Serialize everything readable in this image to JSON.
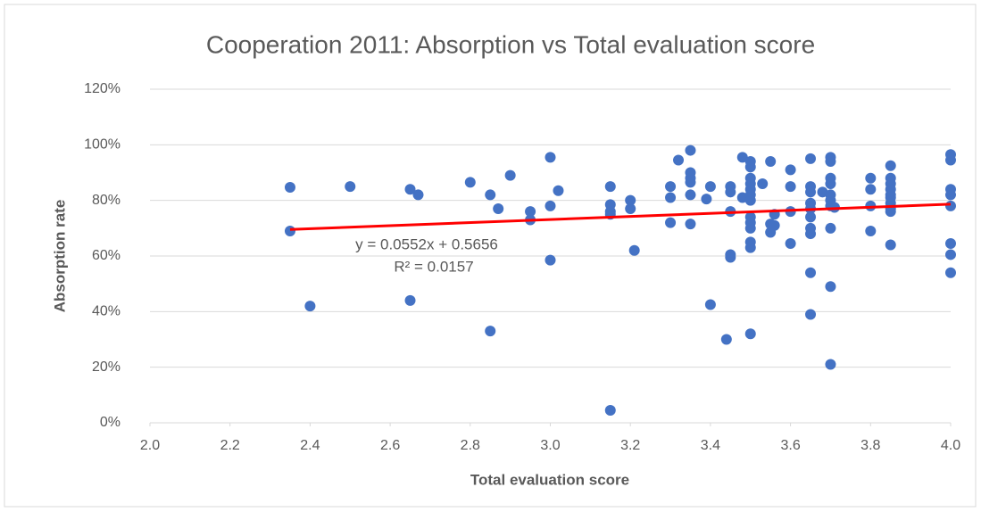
{
  "chart_data": {
    "type": "scatter",
    "title": "Cooperation 2011: Absorption vs Total evaluation score",
    "x_label": "Total evaluation score",
    "y_label": "Absorption rate",
    "color": "#4472c4",
    "grid": true,
    "xlim": [
      2.0,
      4.0
    ],
    "ylim": [
      0,
      1.2
    ],
    "xticks": [
      {
        "value": 2.0,
        "label": "2.0"
      },
      {
        "value": 2.2,
        "label": "2.2"
      },
      {
        "value": 2.4,
        "label": "2.4"
      },
      {
        "value": 2.6,
        "label": "2.6"
      },
      {
        "value": 2.8,
        "label": "2.8"
      },
      {
        "value": 3.0,
        "label": "3.0"
      },
      {
        "value": 3.2,
        "label": "3.2"
      },
      {
        "value": 3.4,
        "label": "3.4"
      },
      {
        "value": 3.6,
        "label": "3.6"
      },
      {
        "value": 3.8,
        "label": "3.8"
      },
      {
        "value": 4.0,
        "label": "4.0"
      }
    ],
    "yticks": [
      {
        "value": 0,
        "label": "0%"
      },
      {
        "value": 0.2,
        "label": "20%"
      },
      {
        "value": 0.4,
        "label": "40%"
      },
      {
        "value": 0.6,
        "label": "60%"
      },
      {
        "value": 0.8,
        "label": "80%"
      },
      {
        "value": 1.0,
        "label": "100%"
      },
      {
        "value": 1.2,
        "label": "120%"
      }
    ],
    "x": [
      2.35,
      2.35,
      2.4,
      2.5,
      2.65,
      2.67,
      2.65,
      2.8,
      2.85,
      2.87,
      2.85,
      2.9,
      2.95,
      2.95,
      3.0,
      3.0,
      3.0,
      3.02,
      3.15,
      3.15,
      3.15,
      3.15,
      3.15,
      3.2,
      3.2,
      3.21,
      3.3,
      3.3,
      3.3,
      3.32,
      3.35,
      3.35,
      3.35,
      3.35,
      3.35,
      3.35,
      3.39,
      3.4,
      3.4,
      3.44,
      3.45,
      3.45,
      3.45,
      3.45,
      3.45,
      3.48,
      3.48,
      3.5,
      3.5,
      3.5,
      3.5,
      3.5,
      3.5,
      3.5,
      3.5,
      3.5,
      3.5,
      3.5,
      3.5,
      3.5,
      3.53,
      3.55,
      3.55,
      3.55,
      3.56,
      3.56,
      3.6,
      3.6,
      3.6,
      3.6,
      3.65,
      3.65,
      3.65,
      3.65,
      3.65,
      3.65,
      3.65,
      3.65,
      3.65,
      3.65,
      3.7,
      3.7,
      3.7,
      3.7,
      3.7,
      3.7,
      3.7,
      3.7,
      3.7,
      3.7,
      3.68,
      3.71,
      3.8,
      3.8,
      3.8,
      3.8,
      3.85,
      3.85,
      3.85,
      3.85,
      3.85,
      3.85,
      3.85,
      3.85,
      3.85,
      3.85,
      4.0,
      4.0,
      4.0,
      4.0,
      4.0,
      4.0,
      4.0,
      4.0
    ],
    "values": [
      0.847,
      0.69,
      0.42,
      0.85,
      0.84,
      0.82,
      0.44,
      0.865,
      0.82,
      0.77,
      0.33,
      0.89,
      0.76,
      0.73,
      0.955,
      0.78,
      0.585,
      0.835,
      0.85,
      0.785,
      0.76,
      0.75,
      0.045,
      0.8,
      0.77,
      0.62,
      0.85,
      0.81,
      0.72,
      0.945,
      0.98,
      0.9,
      0.88,
      0.865,
      0.82,
      0.715,
      0.805,
      0.85,
      0.425,
      0.3,
      0.85,
      0.83,
      0.76,
      0.605,
      0.595,
      0.955,
      0.81,
      0.94,
      0.92,
      0.88,
      0.86,
      0.84,
      0.82,
      0.8,
      0.74,
      0.72,
      0.7,
      0.65,
      0.63,
      0.32,
      0.86,
      0.94,
      0.715,
      0.685,
      0.75,
      0.71,
      0.91,
      0.85,
      0.76,
      0.645,
      0.95,
      0.85,
      0.83,
      0.79,
      0.77,
      0.74,
      0.7,
      0.68,
      0.54,
      0.39,
      0.955,
      0.94,
      0.88,
      0.86,
      0.82,
      0.8,
      0.78,
      0.7,
      0.49,
      0.21,
      0.83,
      0.775,
      0.88,
      0.84,
      0.78,
      0.69,
      0.925,
      0.88,
      0.86,
      0.84,
      0.82,
      0.81,
      0.79,
      0.77,
      0.76,
      0.64,
      0.965,
      0.945,
      0.84,
      0.82,
      0.78,
      0.645,
      0.605,
      0.54
    ],
    "trendline": {
      "slope": 0.0552,
      "intercept": 0.5656,
      "color": "#ff0000",
      "equation": "y = 0.0552x + 0.5656",
      "r2": "R² = 0.0157"
    }
  }
}
